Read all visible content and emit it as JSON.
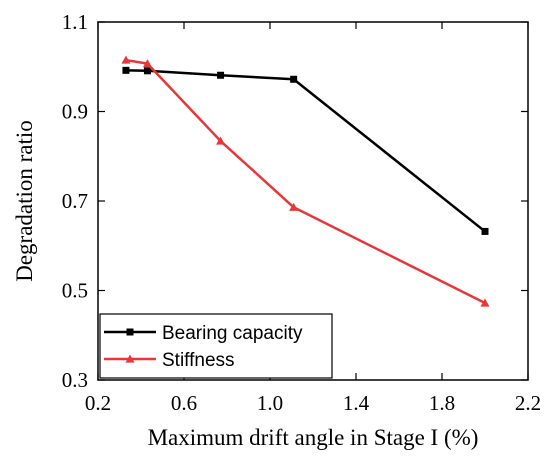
{
  "chart_data": {
    "type": "line",
    "xlabel": "Maximum drift angle in Stage I (%)",
    "ylabel": "Degradation ratio",
    "xlim": [
      0.2,
      2.2
    ],
    "ylim": [
      0.3,
      1.1
    ],
    "xticks": [
      0.2,
      0.6,
      1.0,
      1.4,
      1.8,
      2.2
    ],
    "xtick_labels": [
      "0.2",
      "0.6",
      "1.0",
      "1.4",
      "1.8",
      "2.2"
    ],
    "yticks": [
      0.3,
      0.5,
      0.7,
      0.9,
      1.1
    ],
    "ytick_labels": [
      "0.3",
      "0.5",
      "0.7",
      "0.9",
      "1.1"
    ],
    "grid": false,
    "legend_position": "bottom-left",
    "series": [
      {
        "name": "Bearing capacity",
        "color": "#000000",
        "marker": "square",
        "x": [
          0.33,
          0.43,
          0.77,
          1.11,
          2.0
        ],
        "y": [
          0.992,
          0.991,
          0.981,
          0.972,
          0.632
        ]
      },
      {
        "name": "Stiffness",
        "color": "#e8373b",
        "marker": "triangle",
        "x": [
          0.33,
          0.43,
          0.77,
          1.11,
          2.0
        ],
        "y": [
          1.015,
          1.007,
          0.834,
          0.686,
          0.472
        ]
      }
    ]
  }
}
